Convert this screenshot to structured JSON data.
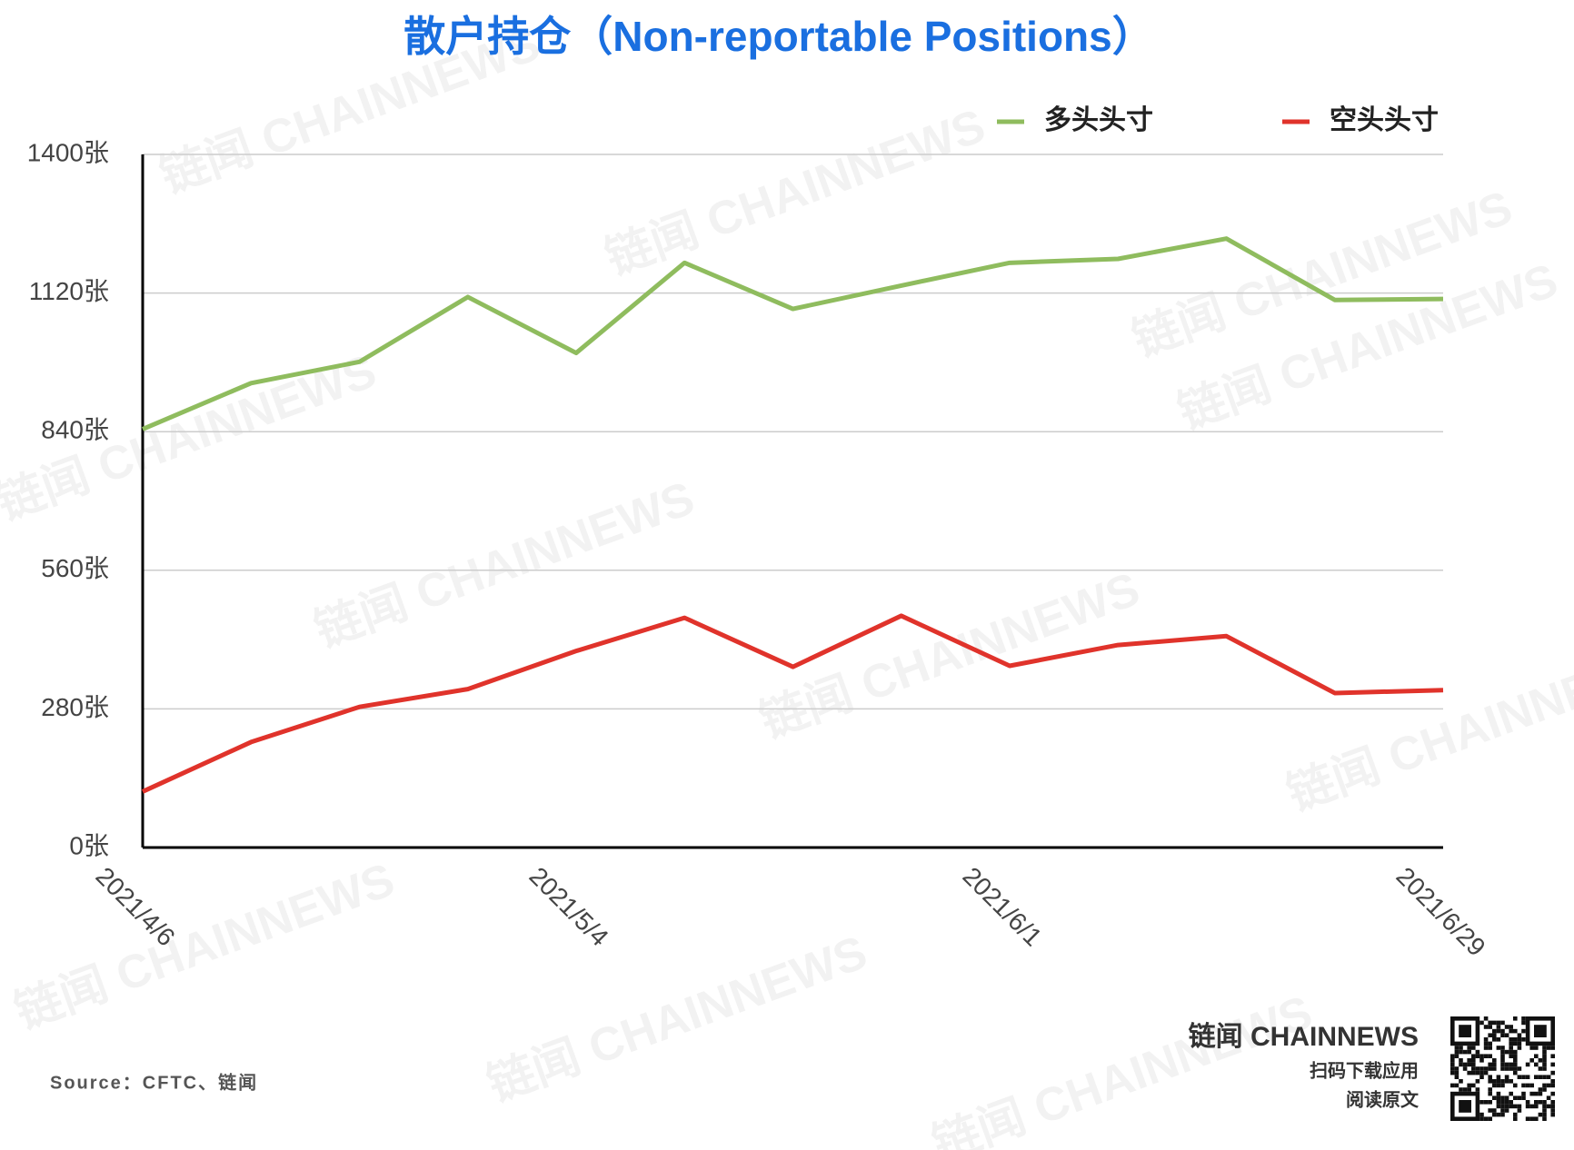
{
  "chart_data": {
    "type": "line",
    "title": "散户持仓（Non-reportable Positions）",
    "categories": [
      "2021/4/6",
      null,
      null,
      null,
      "2021/5/4",
      null,
      null,
      null,
      "2021/6/1",
      null,
      null,
      null,
      "2021/6/29"
    ],
    "series": [
      {
        "name": "多头头寸",
        "color": "#8fbc5e",
        "values": [
          845,
          938,
          981,
          1112,
          999,
          1181,
          1088,
          1135,
          1181,
          1189,
          1230,
          1106,
          1108
        ]
      },
      {
        "name": "空头头寸",
        "color": "#e0332b",
        "values": [
          113,
          213,
          284,
          320,
          397,
          464,
          365,
          468,
          367,
          409,
          427,
          312,
          318
        ]
      }
    ],
    "ylim": [
      0,
      1400
    ],
    "yticks": [
      {
        "value": 0,
        "label": "0张"
      },
      {
        "value": 280,
        "label": "280张"
      },
      {
        "value": 560,
        "label": "560张"
      },
      {
        "value": 840,
        "label": "840张"
      },
      {
        "value": 1120,
        "label": "1120张"
      },
      {
        "value": 1400,
        "label": "1400张"
      }
    ],
    "grid": true,
    "legend": "top-right"
  },
  "footer": {
    "source": "Source：CFTC、链闻",
    "brand": "链闻 CHAINNEWS",
    "line1": "扫码下载应用",
    "line2": "阅读原文"
  },
  "watermark": "链闻 CHAINNEWS"
}
